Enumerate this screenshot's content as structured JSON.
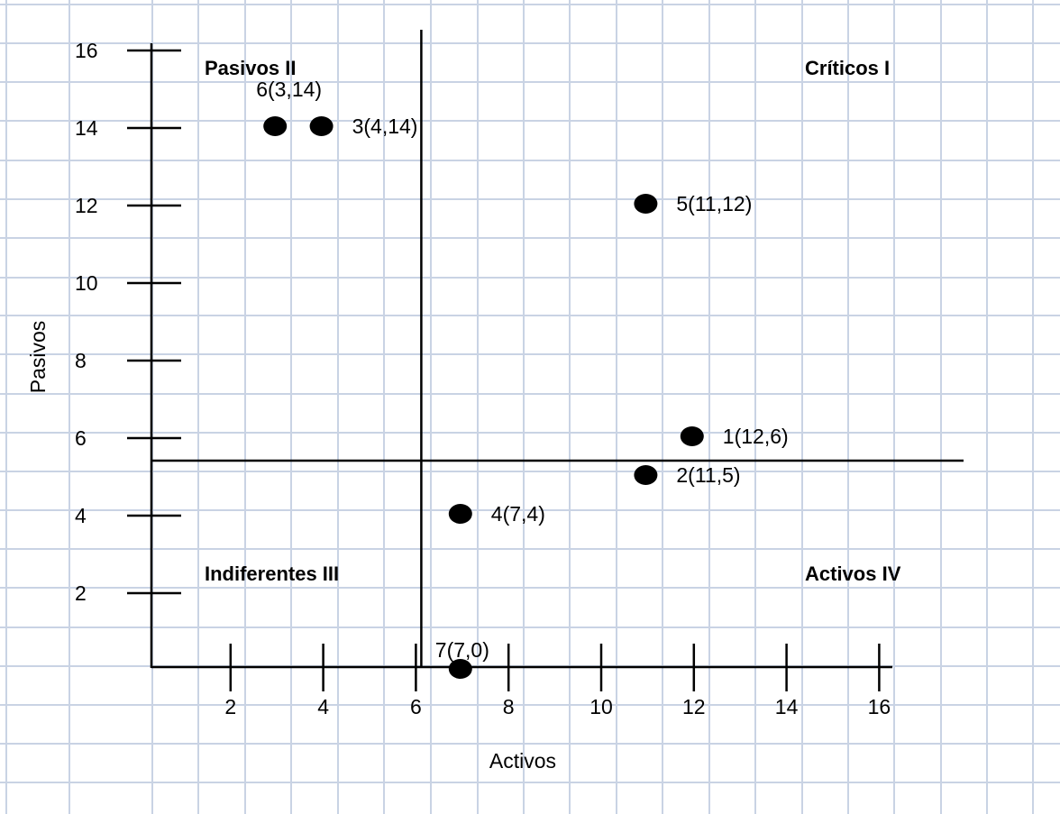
{
  "chart_data": {
    "type": "scatter",
    "xlabel": "Activos",
    "ylabel": "Pasivos",
    "xlim": [
      0,
      16
    ],
    "ylim": [
      0,
      16
    ],
    "x_ticks": [
      2,
      4,
      6,
      8,
      10,
      12,
      14,
      16
    ],
    "y_ticks": [
      2,
      4,
      6,
      8,
      10,
      12,
      14,
      16
    ],
    "divider_x": 6,
    "divider_y": 5,
    "grid": true,
    "points": [
      {
        "label": "1(12,6)",
        "x": 12,
        "y": 6
      },
      {
        "label": "2(11,5)",
        "x": 11,
        "y": 5
      },
      {
        "label": "3(4,14)",
        "x": 4,
        "y": 14
      },
      {
        "label": "4(7,4)",
        "x": 7,
        "y": 4
      },
      {
        "label": "5(11,12)",
        "x": 11,
        "y": 12
      },
      {
        "label": "6(3,14)",
        "x": 3,
        "y": 14
      },
      {
        "label": "7(7,0)",
        "x": 7,
        "y": 0
      }
    ],
    "quadrants": {
      "critical": "Críticos I",
      "passive": "Pasivos II",
      "indifferent": "Indiferentes III",
      "active": "Activos IV"
    },
    "colors": {
      "grid": "#c9d3e4",
      "axis": "#000000",
      "marker": "#000000"
    }
  }
}
